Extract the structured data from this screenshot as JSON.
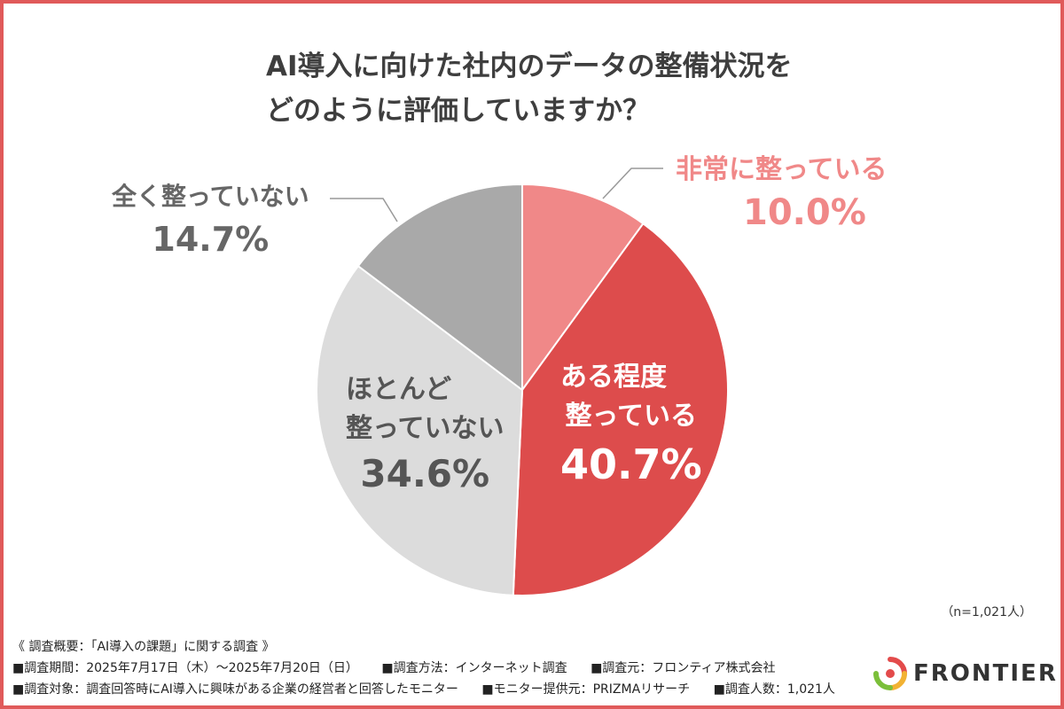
{
  "title": {
    "line1": "AI導入に向けた社内のデータの整備状況を",
    "line2": "どのように評価していますか？"
  },
  "chart_data": {
    "type": "pie",
    "title": "AI導入に向けた社内のデータの整備状況をどのように評価していますか？",
    "slices": [
      {
        "label": "非常に整っている",
        "value": 10.0,
        "pct_text": "10.0%",
        "color": "#f08888"
      },
      {
        "label": "ある程度整っている",
        "value": 40.7,
        "pct_text": "40.7%",
        "color": "#dd4c4c"
      },
      {
        "label": "ほとんど整っていない",
        "value": 34.6,
        "pct_text": "34.6%",
        "color": "#dcdcdc"
      },
      {
        "label": "全く整っていない",
        "value": 14.7,
        "pct_text": "14.7%",
        "color": "#a9a9a9"
      }
    ]
  },
  "labels": {
    "hijou": {
      "text": "非常に整っている",
      "pct": "10.0%"
    },
    "aru_line1": "ある程度",
    "aru_line2": "整っている",
    "aru_pct": "40.7%",
    "hotondo_line1": "ほとんど",
    "hotondo_line2": "整っていない",
    "hotondo_pct": "34.6%",
    "mattaku": {
      "text": "全く整っていない",
      "pct": "14.7%"
    }
  },
  "sample_size": "（n=1,021人）",
  "footer": {
    "heading": "《 調査概要：「AI導入の課題」に関する調査 》",
    "period": "■調査期間：2025年7月17日（木）〜2025年7月20日（日）",
    "method": "■調査方法：インターネット調査",
    "source": "■調査元：フロンティア株式会社",
    "target": "■調査対象：調査回答時にAI導入に興味がある企業の経営者と回答したモニター",
    "provider": "■モニター提供元：PRIZMAリサーチ",
    "count": "■調査人数：1,021人"
  },
  "logo": {
    "text": "FRONTIER"
  },
  "colors": {
    "border": "#e05a5a",
    "pink_label": "#f08888",
    "gray_label": "#666666",
    "dark_gray_label": "#555555"
  }
}
